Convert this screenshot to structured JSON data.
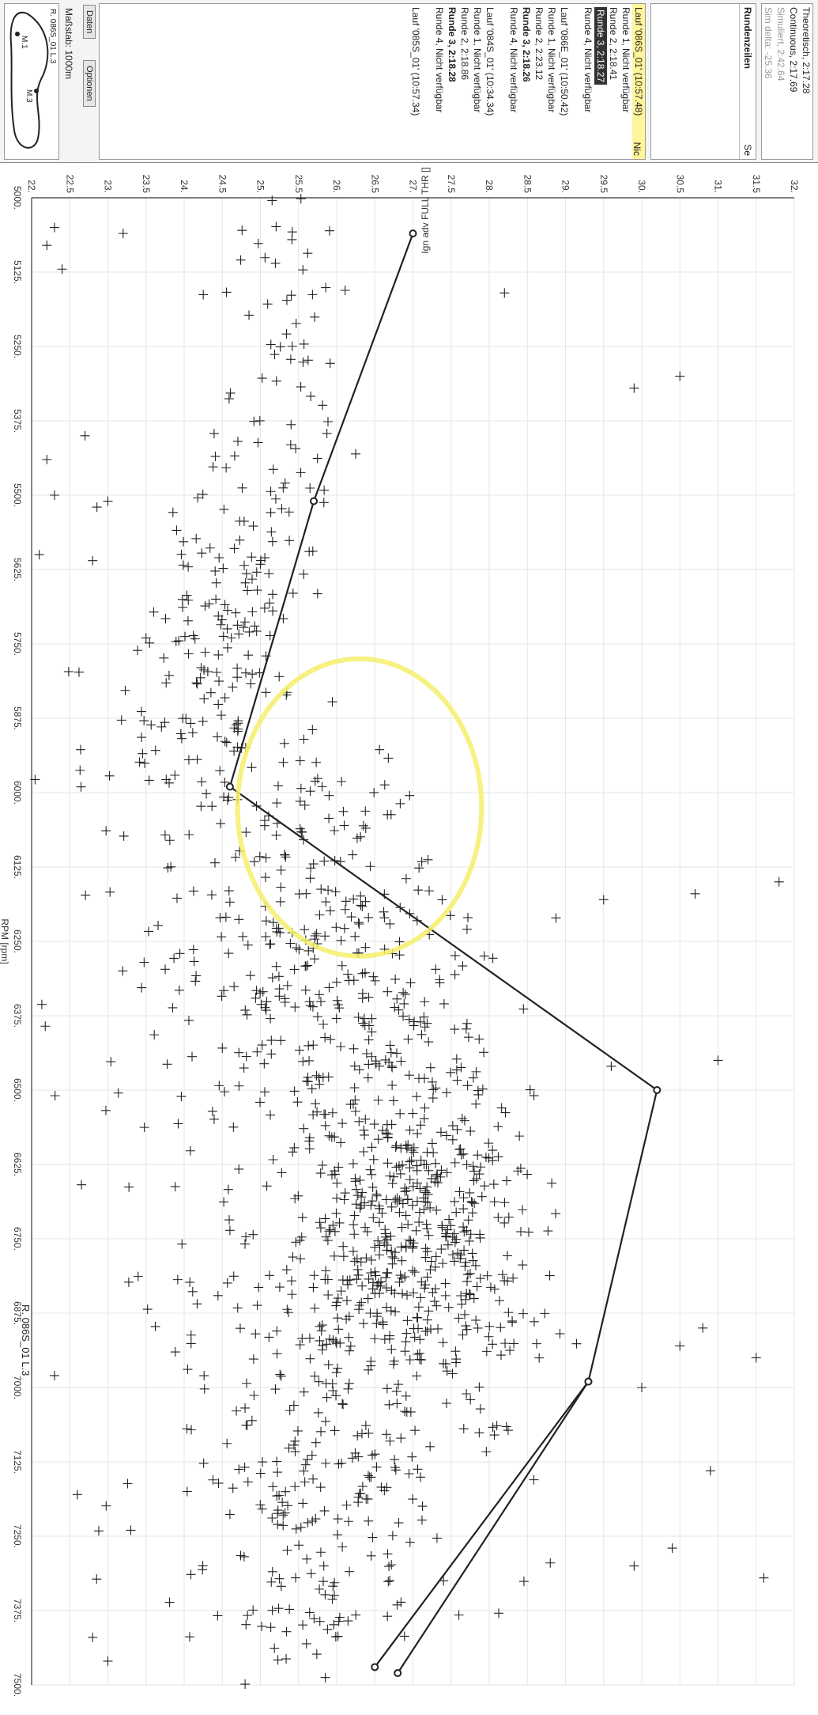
{
  "panel": {
    "top_rows": [
      "Theoretisch, 2:17.28",
      "Continuous, 2:17.69",
      "Simuliert, 2:42.64",
      "Sim delta: -25.36"
    ],
    "section_label": "Rundenzeilen",
    "se_label": "Se",
    "lap_groups": [
      {
        "title": "Lauf '086S_01' (10:57.48)",
        "laps": [
          "Runde 1, Nicht verfügbar",
          "Runde 2, 2:18.41",
          "Runde 3, 2:18.27",
          "Runde 4, Nicht verfügbar"
        ]
      },
      {
        "title": "Lauf '086E_01' (10:50.42)",
        "laps": [
          "Runde 1, Nicht verfügbar",
          "Runde 2, 2:23.12",
          "Runde 3, 2:18.26",
          "Runde 4, Nicht verfügbar"
        ]
      },
      {
        "title": "Lauf '084S_01' (10:34.34)",
        "laps": [
          "Runde 1, Nicht verfügbar",
          "Runde 2, 2:18.86",
          "Runde 3, 2:18.28",
          "Runde 4, Nicht verfügbar"
        ]
      },
      {
        "title": "Lauf '085S_01' (10:57.34)",
        "laps": []
      }
    ],
    "nic_label": "Nic",
    "tabs": [
      "Daten",
      "Optionen"
    ],
    "scale_label": "Maßstab: 1000m",
    "map_labels": [
      "R. 086S_01 L.3",
      "M.1",
      "M.3"
    ]
  },
  "corner_label": "R. 086S_01 L.3",
  "chart_data": {
    "type": "scatter",
    "title": "",
    "xlabel": "RPM [rpm]",
    "ylabel": "Ign adv FULL THR []",
    "xlim": [
      5000,
      7500
    ],
    "ylim": [
      22,
      32
    ],
    "x_ticks": [
      "5000.",
      "5125.",
      "5250.",
      "5375.",
      "5500.",
      "5625.",
      "5750.",
      "5875.",
      "6000.",
      "6125.",
      "6250.",
      "6375.",
      "6500.",
      "6625.",
      "6750.",
      "6875.",
      "7000.",
      "7125.",
      "7250.",
      "7375.",
      "7500."
    ],
    "y_ticks": [
      "22.",
      "22.5",
      "23.",
      "23.5",
      "24.",
      "24.5",
      "25.",
      "25.5",
      "26.",
      "26.5",
      "27.",
      "27.5",
      "28.",
      "28.5",
      "29.",
      "29.5",
      "30.",
      "30.5",
      "31.",
      "31.5",
      "32."
    ],
    "map_line": {
      "x": [
        5060,
        5510,
        5990,
        6500,
        6990,
        7480
      ],
      "y": [
        27.0,
        25.7,
        24.6,
        30.2,
        29.3,
        26.8
      ]
    },
    "map_line_2": {
      "x": [
        6990,
        7470
      ],
      "y": [
        29.3,
        26.5
      ]
    },
    "scatter_clusters": [
      {
        "x": 5200,
        "y": 25.3,
        "sx": 120,
        "sy": 0.4,
        "n": 45
      },
      {
        "x": 5500,
        "y": 25.0,
        "sx": 110,
        "sy": 0.5,
        "n": 45
      },
      {
        "x": 5700,
        "y": 24.6,
        "sx": 90,
        "sy": 0.5,
        "n": 80
      },
      {
        "x": 5900,
        "y": 24.1,
        "sx": 100,
        "sy": 0.7,
        "n": 70
      },
      {
        "x": 6050,
        "y": 25.8,
        "sx": 70,
        "sy": 0.6,
        "n": 60
      },
      {
        "x": 6250,
        "y": 25.6,
        "sx": 90,
        "sy": 1.0,
        "n": 140
      },
      {
        "x": 6450,
        "y": 26.2,
        "sx": 100,
        "sy": 1.0,
        "n": 160
      },
      {
        "x": 6650,
        "y": 27.0,
        "sx": 90,
        "sy": 0.8,
        "n": 220
      },
      {
        "x": 6800,
        "y": 26.8,
        "sx": 90,
        "sy": 0.9,
        "n": 200
      },
      {
        "x": 6950,
        "y": 26.5,
        "sx": 100,
        "sy": 1.1,
        "n": 160
      },
      {
        "x": 7200,
        "y": 25.6,
        "sx": 110,
        "sy": 1.1,
        "n": 150
      },
      {
        "x": 7400,
        "y": 25.6,
        "sx": 60,
        "sy": 0.5,
        "n": 30
      },
      {
        "x": 6250,
        "y": 23.5,
        "sx": 300,
        "sy": 0.7,
        "n": 40
      }
    ],
    "outliers": {
      "x": [
        5080,
        5120,
        5160,
        5300,
        5320,
        5400,
        5440,
        5500,
        5510,
        5600,
        5610,
        5740,
        6150,
        6170,
        6180,
        6450,
        6460,
        6900,
        6930,
        6950,
        7000,
        7140,
        7270,
        7300,
        7320,
        7420,
        7460,
        5050,
        5060,
        6980,
        7180,
        7240
      ],
      "y": [
        22.2,
        22.4,
        28.2,
        30.5,
        29.9,
        22.7,
        22.2,
        22.3,
        23.0,
        22.1,
        22.8,
        23.5,
        31.8,
        30.7,
        29.5,
        31.0,
        29.6,
        30.8,
        30.5,
        31.5,
        30.0,
        30.9,
        30.4,
        29.9,
        31.6,
        22.8,
        23.0,
        22.3,
        23.2,
        22.3,
        22.6,
        23.3
      ]
    },
    "highlight_circle": {
      "x": 6025,
      "y": 26.3,
      "rx": 250,
      "ry": 1.6,
      "color": "#f5ee6a"
    },
    "grid": true,
    "marker": "+",
    "color": "#222222"
  }
}
